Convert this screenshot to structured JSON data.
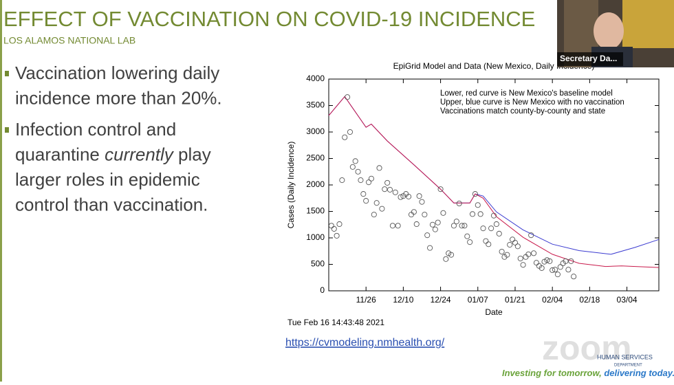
{
  "slide": {
    "title": "EFFECT OF VACCINATION ON COVID-19 INCIDENCE",
    "subtitle": "LOS ALAMOS NATIONAL LAB",
    "bullets": [
      {
        "lines": [
          [
            "Vaccination lowering daily"
          ],
          [
            "incidence more than 20%."
          ]
        ]
      },
      {
        "lines": [
          [
            "Infection control and"
          ],
          [
            "quarantine ",
            "currently",
            " play"
          ],
          [
            "larger roles in epidemic"
          ],
          [
            "control than vaccination."
          ]
        ]
      }
    ],
    "timestamp": "Tue Feb 16 14:43:48 2021",
    "link": "https://cvmodeling.nmhealth.org/"
  },
  "video": {
    "participant": "Secretary Da..."
  },
  "footer": {
    "logo": "zoom",
    "org": "HUMAN SERVICES",
    "org_sub": "DEPARTMENT",
    "tagline_1": "Investing for tomorrow, ",
    "tagline_2": "delivering today."
  },
  "chart_data": {
    "type": "line",
    "title": "EpiGrid Model and Data (New Mexico, Daily Incidence)",
    "x_label": "Date",
    "y_label": "Cases (Daily Incidence)",
    "annotations": [
      "Lower, red curve is New Mexico's baseline model",
      "Upper, blue curve is New Mexico with no vaccination",
      "Vaccinations match county-by-county and state"
    ],
    "xlim": [
      -14,
      110
    ],
    "ylim": [
      0,
      4000
    ],
    "xticks": [
      {
        "value": 0,
        "label": "11/26"
      },
      {
        "value": 14,
        "label": "12/10"
      },
      {
        "value": 28,
        "label": "12/24"
      },
      {
        "value": 42,
        "label": "01/07"
      },
      {
        "value": 56,
        "label": "01/21"
      },
      {
        "value": 70,
        "label": "02/04"
      },
      {
        "value": 84,
        "label": "02/18"
      },
      {
        "value": 98,
        "label": "03/04"
      }
    ],
    "yticks": [
      0,
      500,
      1000,
      1500,
      2000,
      2500,
      3000,
      3500,
      4000
    ],
    "series": [
      {
        "type": "line",
        "color": "#3a3ad0",
        "x": [
          -14,
          -8,
          0,
          2,
          8,
          18,
          28,
          33,
          39,
          41,
          44,
          49,
          59,
          70,
          80,
          92,
          101,
          110
        ],
        "values": [
          3310,
          3670,
          3090,
          3150,
          2830,
          2380,
          1920,
          1660,
          1660,
          1830,
          1790,
          1490,
          1150,
          880,
          760,
          690,
          820,
          970
        ]
      },
      {
        "type": "line",
        "color": "#c8184a",
        "x": [
          -14,
          -8,
          0,
          2,
          8,
          18,
          28,
          33,
          39,
          41,
          44,
          49,
          59,
          70,
          80,
          90,
          96,
          110
        ],
        "values": [
          3310,
          3670,
          3090,
          3150,
          2830,
          2380,
          1920,
          1660,
          1660,
          1830,
          1750,
          1400,
          1010,
          690,
          520,
          460,
          470,
          440
        ]
      },
      {
        "type": "scatter",
        "color": "#555555",
        "x": [
          -13,
          -12,
          -11,
          -10,
          -9,
          -8,
          -7,
          -6,
          -5,
          -4,
          -3,
          -2,
          -1,
          0,
          1,
          2,
          3,
          4,
          5,
          6,
          7,
          8,
          9,
          10,
          11,
          12,
          13,
          14,
          15,
          16,
          17,
          18,
          19,
          20,
          21,
          22,
          23,
          24,
          25,
          26,
          27,
          28,
          29,
          30,
          31,
          32,
          33,
          34,
          35,
          36,
          37,
          38,
          39,
          40,
          41,
          42,
          43,
          44,
          45,
          46,
          47,
          48,
          49,
          50,
          51,
          52,
          53,
          54,
          55,
          56,
          57,
          58,
          59,
          60,
          61,
          62,
          63,
          64,
          65,
          66,
          67,
          68,
          69,
          70,
          71,
          72,
          73,
          74,
          75,
          76,
          77,
          78
        ],
        "values": [
          1230,
          1170,
          1040,
          1260,
          2090,
          2900,
          3660,
          3000,
          2340,
          2450,
          2250,
          2090,
          1830,
          1700,
          2050,
          2120,
          1440,
          1660,
          2320,
          1550,
          1920,
          2040,
          1910,
          1230,
          1860,
          1230,
          1770,
          1790,
          1830,
          1780,
          1440,
          1490,
          1260,
          1790,
          1680,
          1440,
          1050,
          810,
          1250,
          1160,
          1290,
          1920,
          1470,
          600,
          710,
          680,
          1230,
          1310,
          1650,
          1230,
          1230,
          1030,
          920,
          1450,
          1830,
          1620,
          1450,
          1180,
          940,
          880,
          1180,
          1420,
          1260,
          1080,
          740,
          640,
          680,
          870,
          970,
          910,
          840,
          610,
          490,
          640,
          690,
          1050,
          710,
          530,
          470,
          430,
          550,
          580,
          560,
          390,
          400,
          310,
          450,
          520,
          560,
          400,
          560,
          270
        ]
      }
    ]
  }
}
